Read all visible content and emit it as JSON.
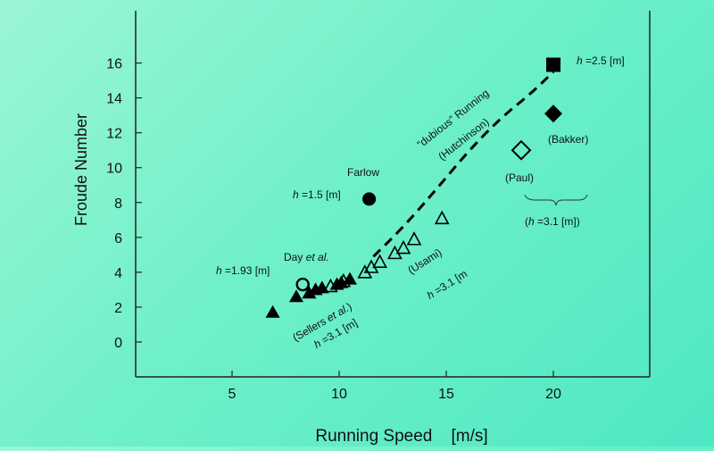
{
  "chart_data": {
    "type": "scatter",
    "xlabel": "Running Speed    [m/s]",
    "ylabel": "Froude Number",
    "xlim": [
      0.5,
      24.5
    ],
    "ylim": [
      -2,
      19
    ],
    "xticks": [
      5,
      10,
      15,
      20
    ],
    "yticks": [
      0,
      2,
      4,
      6,
      8,
      10,
      12,
      14,
      16
    ],
    "grid": false,
    "colors": {
      "axis": "#222222",
      "marker": "#000000",
      "background": "#6ff0c9"
    },
    "series": [
      {
        "marker": "filled-triangle",
        "points": [
          [
            6.9,
            1.7
          ],
          [
            8.0,
            2.6
          ],
          [
            8.6,
            2.8
          ],
          [
            8.9,
            3.0
          ],
          [
            9.2,
            3.1
          ],
          [
            9.9,
            3.3
          ],
          [
            10.1,
            3.4
          ],
          [
            10.5,
            3.6
          ]
        ]
      },
      {
        "marker": "open-triangle",
        "points": [
          [
            9.6,
            3.2
          ],
          [
            10.2,
            3.5
          ],
          [
            11.2,
            4.0
          ],
          [
            11.5,
            4.3
          ],
          [
            11.9,
            4.6
          ],
          [
            12.6,
            5.1
          ],
          [
            13.0,
            5.4
          ],
          [
            13.5,
            5.9
          ],
          [
            14.8,
            7.1
          ]
        ]
      },
      {
        "marker": "open-circle",
        "points": [
          [
            8.3,
            3.3
          ]
        ]
      },
      {
        "marker": "filled-circle",
        "points": [
          [
            11.4,
            8.2
          ]
        ]
      },
      {
        "marker": "filled-square",
        "points": [
          [
            20.0,
            15.9
          ]
        ]
      },
      {
        "marker": "filled-diamond",
        "points": [
          [
            20.0,
            13.1
          ]
        ]
      },
      {
        "marker": "open-diamond",
        "points": [
          [
            18.5,
            11.0
          ]
        ]
      }
    ],
    "curve": [
      [
        11.6,
        4.9
      ],
      [
        13.0,
        6.6
      ],
      [
        14.5,
        8.7
      ],
      [
        16.0,
        10.9
      ],
      [
        17.5,
        12.8
      ],
      [
        19.0,
        14.3
      ],
      [
        20.0,
        15.5
      ]
    ]
  },
  "annotations": {
    "h25": {
      "italic": "h",
      "rest": " =2.5 [m]"
    },
    "bakker": "(Bakker)",
    "paul": "(Paul)",
    "h31_group": {
      "pre": "(",
      "italic": "h",
      "rest": " =3.1 [m])"
    },
    "farlow": "Farlow",
    "h15": {
      "italic": "h",
      "rest": " =1.5 [m]"
    },
    "day": {
      "text": "Day ",
      "italic": "et al."
    },
    "h193": {
      "italic": "h",
      "rest": " =1.93 [m]"
    },
    "dubious_line1": "“dubious” Running",
    "dubious_line2": "(Hutchinson)",
    "usami": "(Usami)",
    "h31_usami": {
      "italic": "h",
      "rest": " =3.1 [m"
    },
    "sellers": {
      "pre": "(Sellers ",
      "italic": "et al.",
      "post": ")"
    },
    "h31_sellers": {
      "italic": "h",
      "rest": " =3.1 [m]"
    }
  }
}
